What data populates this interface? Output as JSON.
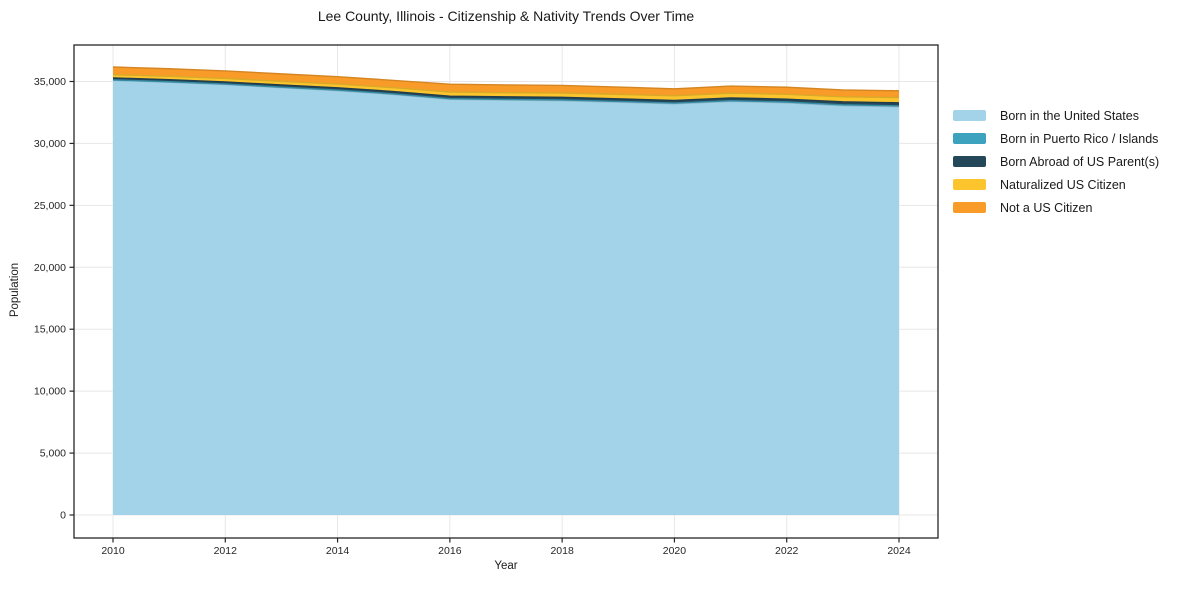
{
  "chart_data": {
    "type": "area",
    "stacked": true,
    "title": "Lee County, Illinois - Citizenship & Nativity Trends Over Time",
    "xlabel": "Year",
    "ylabel": "Population",
    "x": [
      2010,
      2011,
      2012,
      2013,
      2014,
      2015,
      2016,
      2017,
      2018,
      2019,
      2020,
      2021,
      2022,
      2023,
      2024
    ],
    "series": [
      {
        "name": "Born in the United States",
        "color": "#A3D3E8",
        "values": [
          35090,
          34940,
          34750,
          34500,
          34260,
          33950,
          33560,
          33500,
          33450,
          33330,
          33200,
          33390,
          33280,
          33050,
          32960
        ]
      },
      {
        "name": "Born in Puerto Rico / Islands",
        "color": "#3DA2BE",
        "values": [
          40,
          40,
          45,
          45,
          50,
          50,
          55,
          55,
          60,
          60,
          60,
          65,
          65,
          70,
          70
        ]
      },
      {
        "name": "Born Abroad of US Parent(s)",
        "color": "#25475A",
        "values": [
          160,
          165,
          170,
          175,
          180,
          190,
          200,
          205,
          210,
          210,
          215,
          220,
          230,
          240,
          250
        ]
      },
      {
        "name": "Naturalized US Citizen",
        "color": "#FCC52E",
        "values": [
          260,
          270,
          280,
          290,
          300,
          310,
          330,
          340,
          350,
          360,
          370,
          380,
          390,
          400,
          420
        ]
      },
      {
        "name": "Not a US Citizen",
        "color": "#F89B28",
        "values": [
          620,
          615,
          610,
          605,
          600,
          590,
          640,
          620,
          610,
          590,
          560,
          580,
          570,
          560,
          550
        ]
      }
    ],
    "x_ticks": [
      2010,
      2012,
      2014,
      2016,
      2018,
      2020,
      2022,
      2024
    ],
    "y_ticks": [
      0,
      5000,
      10000,
      15000,
      20000,
      25000,
      30000,
      35000
    ],
    "y_tick_labels": [
      "0",
      "5,000",
      "10,000",
      "15,000",
      "20,000",
      "25,000",
      "30,000",
      "35,000"
    ],
    "xlim": [
      2009.3,
      2024.7
    ],
    "ylim": [
      -1900,
      37950
    ],
    "grid": true,
    "legend_position": "right-outside"
  },
  "colors": {
    "background": "#ffffff",
    "frame": "#262626",
    "grid": "#e7e7e7",
    "tick_text": "#262626",
    "text": "#1a1a1a"
  }
}
